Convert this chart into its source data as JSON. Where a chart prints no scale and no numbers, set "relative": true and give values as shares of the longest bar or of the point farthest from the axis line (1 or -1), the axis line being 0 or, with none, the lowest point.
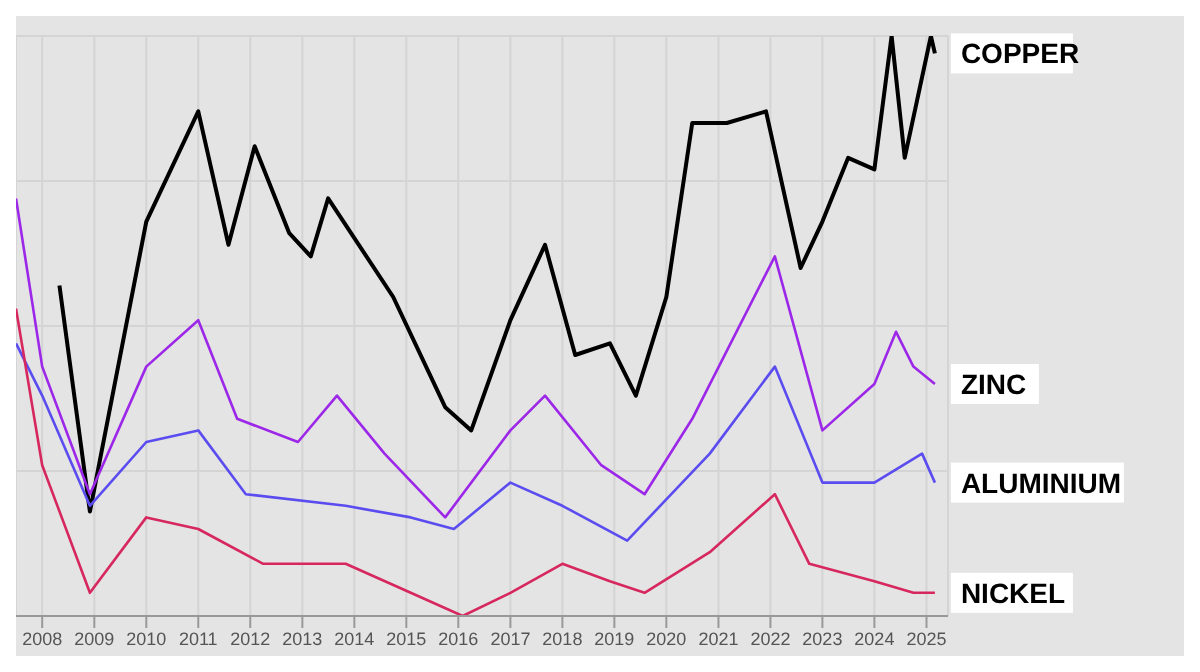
{
  "chart_data": {
    "type": "line",
    "relative": true,
    "grid": true,
    "legend": false,
    "marker": "none",
    "line_style": "solid",
    "xlim": [
      "2007-07",
      "2025-06"
    ],
    "xticks": [
      {
        "value": "2008",
        "label": "2008"
      },
      {
        "value": "2009",
        "label": "2009"
      },
      {
        "value": "2010",
        "label": "2010"
      },
      {
        "value": "2011",
        "label": "2011"
      },
      {
        "value": "2012",
        "label": "2012"
      },
      {
        "value": "2013",
        "label": "2013"
      },
      {
        "value": "2014",
        "label": "2014"
      },
      {
        "value": "2015",
        "label": "2015"
      },
      {
        "value": "2016",
        "label": "2016"
      },
      {
        "value": "2017",
        "label": "2017"
      },
      {
        "value": "2018",
        "label": "2018"
      },
      {
        "value": "2019",
        "label": "2019"
      },
      {
        "value": "2020",
        "label": "2020"
      },
      {
        "value": "2021",
        "label": "2021"
      },
      {
        "value": "2022",
        "label": "2022"
      },
      {
        "value": "2023",
        "label": "2023"
      },
      {
        "value": "2024",
        "label": "2024"
      },
      {
        "value": "2025",
        "label": "2025"
      }
    ],
    "series": [
      {
        "name": "COPPER",
        "color": "#000000",
        "x": [
          "2008-05",
          "2008-12",
          "2010-01",
          "2011-01",
          "2011-08",
          "2012-02",
          "2012-10",
          "2013-03",
          "2013-07",
          "2014-10",
          "2015-10",
          "2016-04",
          "2017-01",
          "2017-09",
          "2018-04",
          "2018-12",
          "2019-06",
          "2020-01",
          "2020-07",
          "2021-03",
          "2021-12",
          "2022-08",
          "2023-01",
          "2023-07",
          "2024-01",
          "2024-05",
          "2024-08",
          "2025-02",
          "2025-03"
        ],
        "values": [
          0.57,
          0.18,
          0.68,
          0.87,
          0.64,
          0.81,
          0.66,
          0.62,
          0.72,
          0.55,
          0.36,
          0.32,
          0.51,
          0.64,
          0.45,
          0.47,
          0.38,
          0.55,
          0.85,
          0.85,
          0.87,
          0.6,
          0.68,
          0.79,
          0.77,
          1.0,
          0.79,
          1.0,
          0.97
        ]
      },
      {
        "name": "ZINC",
        "color": "#9c27e8",
        "x": [
          "2007-07",
          "2008-01",
          "2008-12",
          "2010-01",
          "2011-01",
          "2011-10",
          "2012-12",
          "2013-09",
          "2014-08",
          "2015-10",
          "2017-01",
          "2017-09",
          "2018-10",
          "2019-08",
          "2020-07",
          "2022-02",
          "2023-01",
          "2024-01",
          "2024-06",
          "2024-10",
          "2025-03"
        ],
        "values": [
          0.72,
          0.43,
          0.21,
          0.43,
          0.51,
          0.34,
          0.3,
          0.38,
          0.28,
          0.17,
          0.32,
          0.38,
          0.26,
          0.21,
          0.34,
          0.62,
          0.32,
          0.4,
          0.49,
          0.43,
          0.4
        ]
      },
      {
        "name": "ALUMINIUM",
        "color": "#5b4cf0",
        "x": [
          "2007-07",
          "2008-01",
          "2008-12",
          "2010-01",
          "2011-01",
          "2011-12",
          "2013-11",
          "2015-02",
          "2015-12",
          "2017-01",
          "2018-01",
          "2019-04",
          "2020-11",
          "2022-02",
          "2023-01",
          "2024-01",
          "2024-12",
          "2025-03"
        ],
        "values": [
          0.47,
          0.38,
          0.19,
          0.3,
          0.32,
          0.21,
          0.19,
          0.17,
          0.15,
          0.23,
          0.19,
          0.13,
          0.28,
          0.43,
          0.23,
          0.23,
          0.28,
          0.23
        ]
      },
      {
        "name": "NICKEL",
        "color": "#d6275f",
        "x": [
          "2007-07",
          "2008-01",
          "2008-12",
          "2010-01",
          "2011-01",
          "2012-04",
          "2013-11",
          "2015-02",
          "2016-02",
          "2017-01",
          "2018-01",
          "2018-12",
          "2019-08",
          "2020-11",
          "2022-02",
          "2022-10",
          "2024-01",
          "2024-10",
          "2025-03"
        ],
        "values": [
          0.53,
          0.26,
          0.04,
          0.17,
          0.15,
          0.09,
          0.09,
          0.04,
          0,
          0.04,
          0.09,
          0.06,
          0.04,
          0.11,
          0.21,
          0.09,
          0.06,
          0.04,
          0.04
        ]
      }
    ]
  }
}
